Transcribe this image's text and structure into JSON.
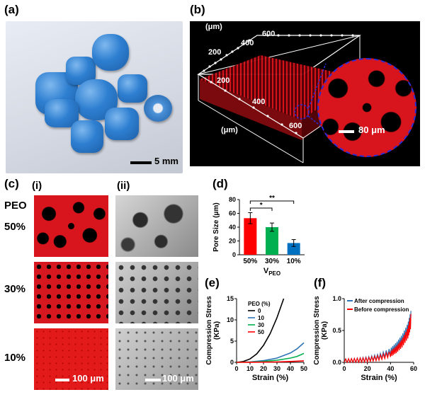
{
  "panel_labels": {
    "a": "(a)",
    "b": "(b)",
    "c": "(c)",
    "d": "(d)",
    "e": "(e)",
    "f": "(f)"
  },
  "panel_a": {
    "scale": "5 mm"
  },
  "panel_b": {
    "unit_top": "(μm)",
    "unit_side": "(μm)",
    "top_ticks": [
      "200",
      "400",
      "600"
    ],
    "side_ticks": [
      "200",
      "400",
      "600"
    ],
    "zoom_scale": "80 μm"
  },
  "panel_c": {
    "col_i": "(i)",
    "col_ii": "(ii)",
    "peo": "PEO",
    "rows": [
      "50%",
      "30%",
      "10%"
    ],
    "scale_i": "100 μm",
    "scale_ii": "100 μm"
  },
  "colors": {
    "red": "#ff0000",
    "green": "#00b050",
    "blue": "#0070c0",
    "black": "#000000"
  },
  "chart_data": [
    {
      "type": "bar",
      "panel": "d",
      "categories": [
        "50%",
        "30%",
        "10%"
      ],
      "values": [
        53,
        40,
        17
      ],
      "errors": [
        8,
        6,
        5
      ],
      "colors": [
        "#ff0000",
        "#00b050",
        "#0070c0"
      ],
      "ylabel": "Pore Size (μm)",
      "xlabel_main": "V",
      "xlabel_sub": "PEO",
      "yticks": [
        "0",
        "20",
        "40",
        "60",
        "80"
      ],
      "ylim": [
        0,
        80
      ],
      "significance": [
        {
          "pair": [
            "50%",
            "30%"
          ],
          "label": "*"
        },
        {
          "pair": [
            "50%",
            "10%"
          ],
          "label": "**"
        }
      ]
    },
    {
      "type": "line",
      "panel": "e",
      "xlabel": "Strain (%)",
      "ylabel": "Compression Stress (KPa)",
      "ylabel_lines": [
        "Compression Stress",
        "(KPa)"
      ],
      "xlim": [
        0,
        50
      ],
      "ylim": [
        0,
        15
      ],
      "xticks": [
        "0",
        "10",
        "20",
        "30",
        "40",
        "50"
      ],
      "yticks": [
        "0",
        "5",
        "10",
        "15"
      ],
      "legend_title": "PEO (%)",
      "series": [
        {
          "name": "0",
          "color": "#000000",
          "x": [
            0,
            5,
            10,
            15,
            20,
            25,
            30,
            35
          ],
          "y": [
            0,
            0.2,
            0.8,
            2,
            4,
            6.8,
            10.5,
            15
          ]
        },
        {
          "name": "10",
          "color": "#2e75b6",
          "x": [
            0,
            10,
            20,
            30,
            40,
            45,
            50
          ],
          "y": [
            0,
            0.1,
            0.4,
            1.0,
            2.2,
            3.2,
            4.6
          ]
        },
        {
          "name": "30",
          "color": "#00b050",
          "x": [
            0,
            10,
            20,
            30,
            40,
            45,
            50
          ],
          "y": [
            0,
            0.05,
            0.2,
            0.5,
            1.0,
            1.4,
            2.1
          ]
        },
        {
          "name": "50",
          "color": "#ff0000",
          "x": [
            0,
            10,
            20,
            30,
            40,
            50
          ],
          "y": [
            0,
            0.02,
            0.05,
            0.1,
            0.2,
            0.35
          ]
        }
      ]
    },
    {
      "type": "line",
      "panel": "f",
      "xlabel": "Strain (%)",
      "ylabel": "Compression Stress (KPa)",
      "ylabel_lines": [
        "Compression Stress",
        "(KPa)"
      ],
      "xlim": [
        0,
        60
      ],
      "ylim": [
        0,
        1
      ],
      "xticks": [
        "0",
        "20",
        "40",
        "60"
      ],
      "yticks": [
        "0.0",
        "0.5",
        "1.0"
      ],
      "series": [
        {
          "name": "After compression",
          "color": "#2e75b6",
          "x": [
            0,
            10,
            20,
            30,
            40,
            45,
            50,
            55,
            58
          ],
          "y": [
            0.02,
            0.03,
            0.05,
            0.09,
            0.17,
            0.25,
            0.36,
            0.52,
            0.72
          ]
        },
        {
          "name": "Before compression",
          "color": "#ff0000",
          "x": [
            0,
            10,
            20,
            30,
            40,
            45,
            50,
            55,
            58
          ],
          "y": [
            0.02,
            0.03,
            0.04,
            0.07,
            0.13,
            0.2,
            0.3,
            0.46,
            0.68
          ]
        }
      ]
    }
  ]
}
